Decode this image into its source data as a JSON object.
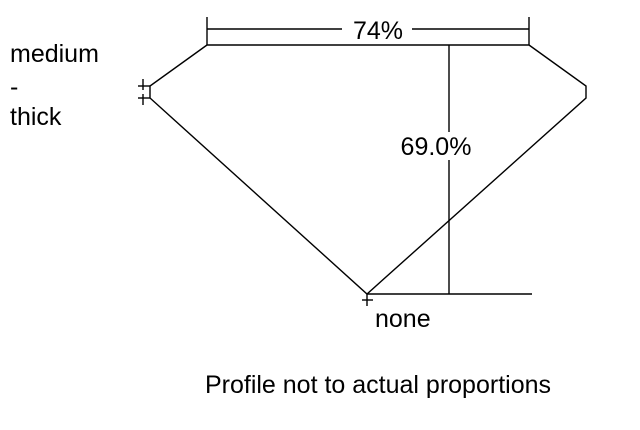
{
  "labels": {
    "table": "74%",
    "depth": "69.0%",
    "culet": "none",
    "girdle": [
      "medium",
      "-",
      "thick"
    ],
    "caption": "Profile not to actual proportions"
  },
  "colors": {
    "line": "#000000",
    "background": "#ffffff"
  }
}
